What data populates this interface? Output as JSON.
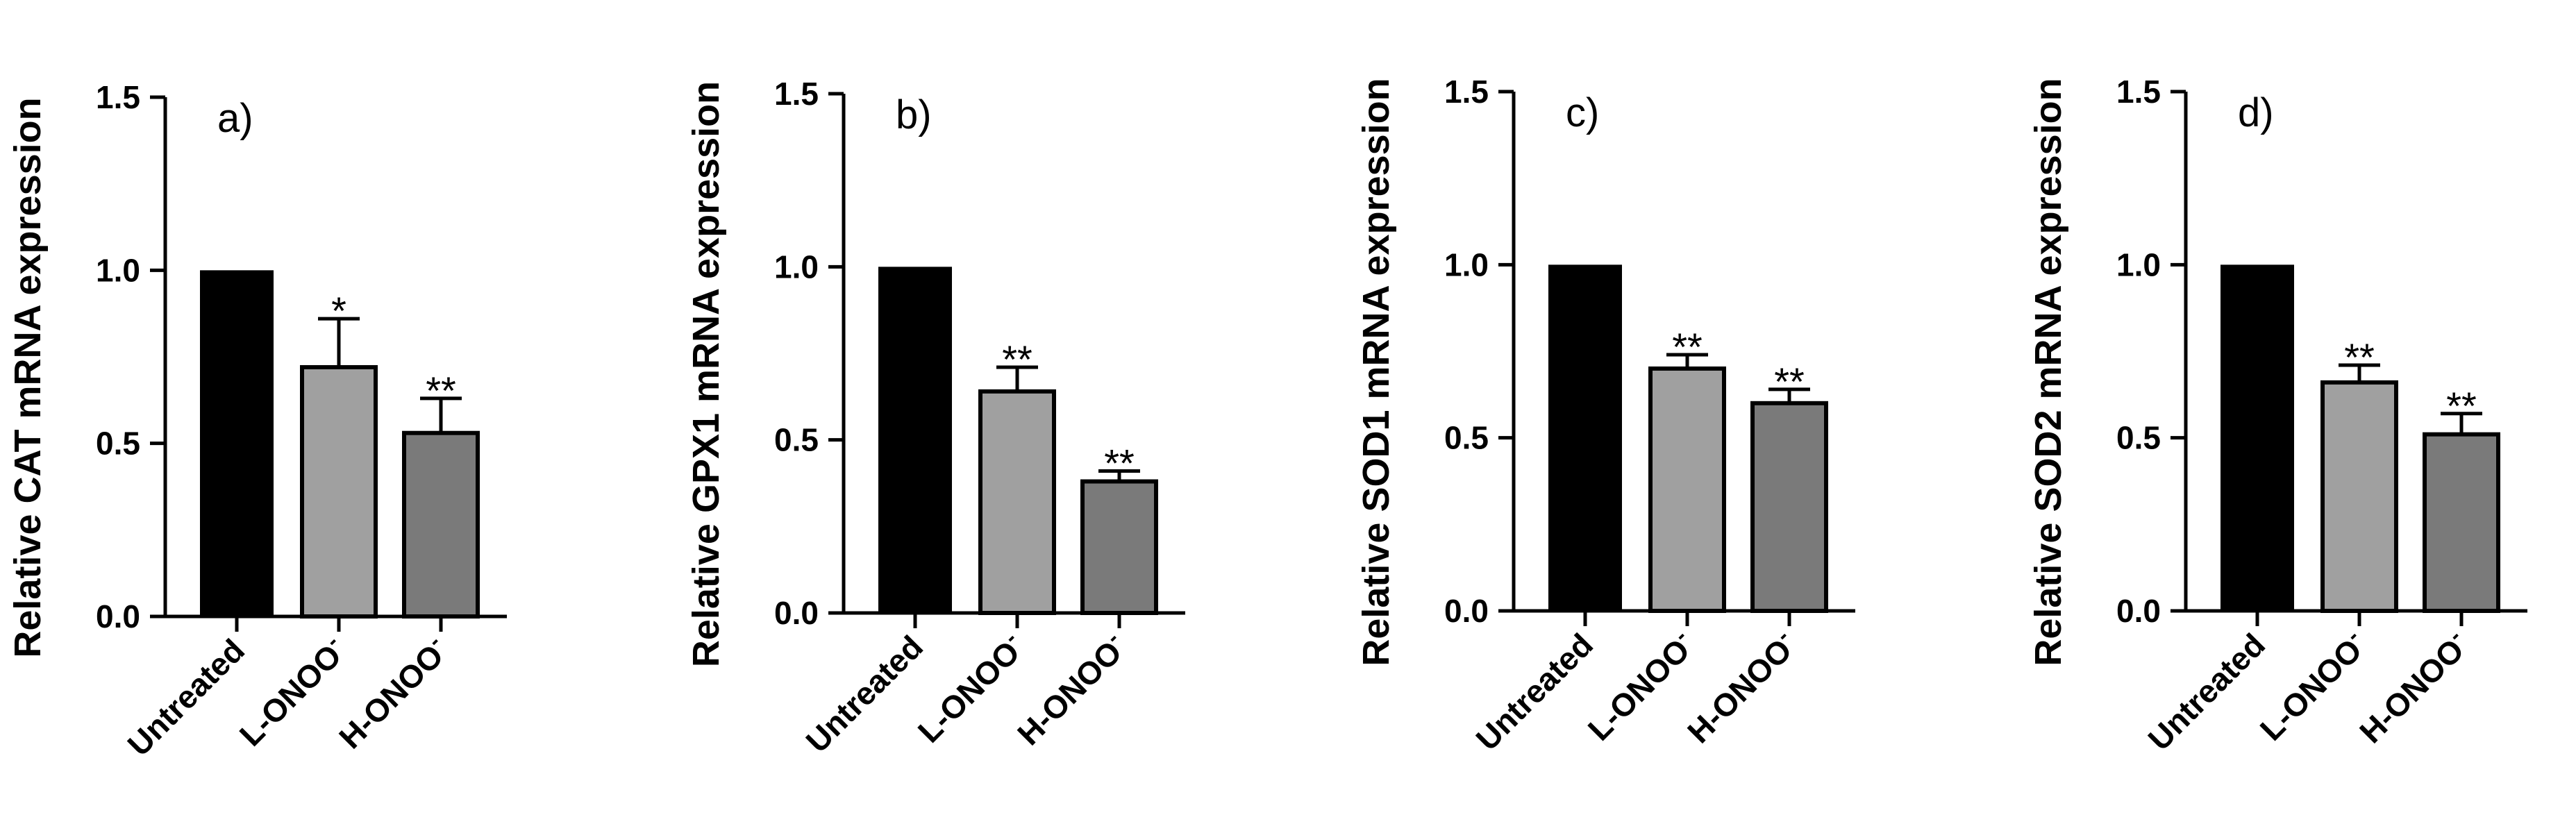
{
  "chart_data": [
    {
      "type": "bar",
      "panel_label": "a)",
      "ylabel": "Relative CAT mRNA expression",
      "xlabel": "",
      "categories": [
        "Untreated",
        "L-ONOO",
        "H-ONOO"
      ],
      "superscripts": [
        "",
        "-",
        "-"
      ],
      "values": [
        1.0,
        0.72,
        0.53
      ],
      "errors": [
        0,
        0.14,
        0.1
      ],
      "significance": [
        "",
        "*",
        "**"
      ],
      "colors": [
        "#000000",
        "#a0a0a0",
        "#7a7a7a"
      ],
      "ylim": [
        0,
        1.5
      ],
      "yticks": [
        "0.0",
        "0.5",
        "1.0",
        "1.5"
      ]
    },
    {
      "type": "bar",
      "panel_label": "b)",
      "ylabel": "Relative GPX1 mRNA expression",
      "xlabel": "",
      "categories": [
        "Untreated",
        "L-ONOO",
        "H-ONOO"
      ],
      "superscripts": [
        "",
        "-",
        "-"
      ],
      "values": [
        1.0,
        0.64,
        0.38
      ],
      "errors": [
        0,
        0.07,
        0.03
      ],
      "significance": [
        "",
        "**",
        "**"
      ],
      "colors": [
        "#000000",
        "#a0a0a0",
        "#7a7a7a"
      ],
      "ylim": [
        0,
        1.5
      ],
      "yticks": [
        "0.0",
        "0.5",
        "1.0",
        "1.5"
      ]
    },
    {
      "type": "bar",
      "panel_label": "c)",
      "ylabel": "Relative SOD1 mRNA expression",
      "xlabel": "",
      "categories": [
        "Untreated",
        "L-ONOO",
        "H-ONOO"
      ],
      "superscripts": [
        "",
        "-",
        "-"
      ],
      "values": [
        1.0,
        0.7,
        0.6
      ],
      "errors": [
        0,
        0.04,
        0.04
      ],
      "significance": [
        "",
        "**",
        "**"
      ],
      "colors": [
        "#000000",
        "#a0a0a0",
        "#7a7a7a"
      ],
      "ylim": [
        0,
        1.5
      ],
      "yticks": [
        "0.0",
        "0.5",
        "1.0",
        "1.5"
      ]
    },
    {
      "type": "bar",
      "panel_label": "d)",
      "ylabel": "Relative SOD2 mRNA expression",
      "xlabel": "",
      "categories": [
        "Untreated",
        "L-ONOO",
        "H-ONOO"
      ],
      "superscripts": [
        "",
        "-",
        "-"
      ],
      "values": [
        1.0,
        0.66,
        0.51
      ],
      "errors": [
        0,
        0.05,
        0.06
      ],
      "significance": [
        "",
        "**",
        "**"
      ],
      "colors": [
        "#000000",
        "#a0a0a0",
        "#7a7a7a"
      ],
      "ylim": [
        0,
        1.5
      ],
      "yticks": [
        "0.0",
        "0.5",
        "1.0",
        "1.5"
      ]
    }
  ]
}
